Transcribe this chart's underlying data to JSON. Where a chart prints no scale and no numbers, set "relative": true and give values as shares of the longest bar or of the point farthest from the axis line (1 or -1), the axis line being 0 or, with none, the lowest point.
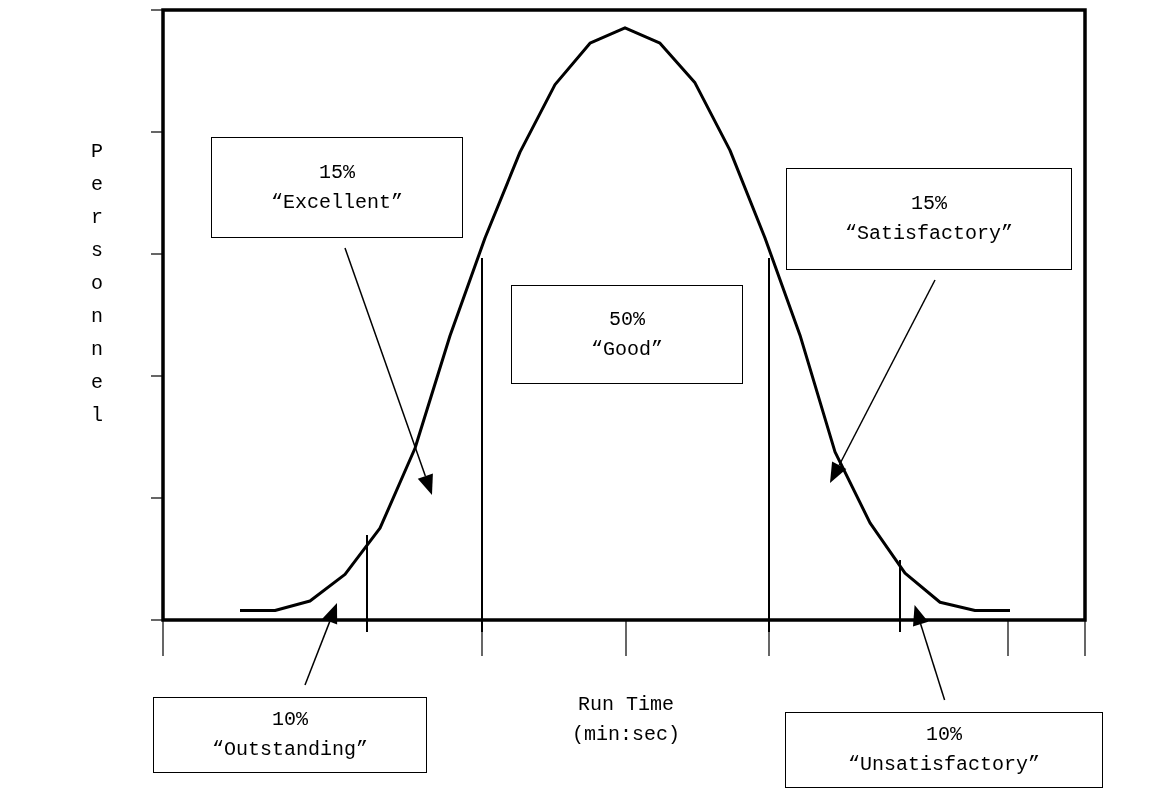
{
  "chart_data": {
    "type": "line",
    "relative": true,
    "xlabel": "Run Time\n(min:sec)",
    "ylabel": "Personnel",
    "color": "#000000",
    "marker": "none",
    "line_style": "solid",
    "categories": [
      null,
      null,
      null,
      null,
      null,
      null,
      null,
      null,
      null,
      null,
      null,
      null,
      null,
      null,
      null,
      null,
      null,
      null,
      null,
      null,
      null,
      null,
      null
    ],
    "values": [
      0.016,
      0.016,
      0.032,
      0.077,
      0.155,
      0.29,
      0.48,
      0.645,
      0.79,
      0.904,
      0.974,
      1,
      0.974,
      0.907,
      0.793,
      0.645,
      0.481,
      0.284,
      0.164,
      0.079,
      0.03,
      0.016,
      0.016
    ],
    "annotations": [
      "15%\n“Excellent”",
      "15%\n“Satisfactory”",
      "50%\n“Good”",
      "10%\n“Outstanding”",
      "10%\n“Unsatisfactory”"
    ]
  }
}
